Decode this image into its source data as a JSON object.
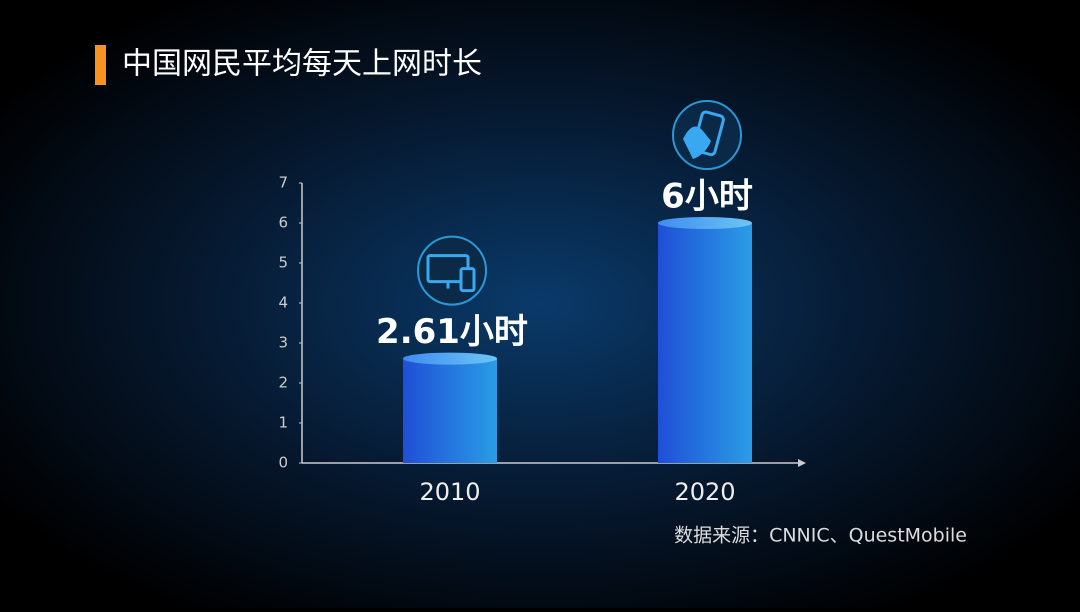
{
  "chart_data": {
    "type": "bar",
    "title": "中国网民平均每天上网时长",
    "categories": [
      "2010",
      "2020"
    ],
    "values": [
      2.61,
      6
    ],
    "value_labels": [
      "2.61小时",
      "6小时"
    ],
    "ylim": [
      0,
      7
    ],
    "yticks": [
      0,
      1,
      2,
      3,
      4,
      5,
      6,
      7
    ],
    "grid": false,
    "color": "#2b6fe0",
    "source": "数据来源：CNNIC、QuestMobile"
  }
}
